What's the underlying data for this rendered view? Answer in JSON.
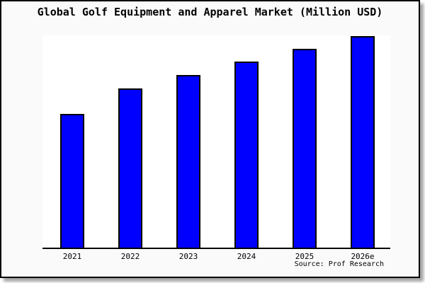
{
  "chart_data": {
    "type": "bar",
    "title": "Global Golf Equipment and Apparel Market (Million USD)",
    "categories": [
      "2021",
      "2022",
      "2023",
      "2024",
      "2025",
      "2026e"
    ],
    "values": [
      63.2,
      75.3,
      81.6,
      88.0,
      94.0,
      100.0
    ],
    "value_scale_note": "no y-axis ticks or value labels shown in image; values are relative bar heights with tallest bar (2026e) = 100",
    "xlabel": "",
    "ylabel": "",
    "ylim": [
      0,
      100
    ],
    "grid": false,
    "legend_position": "none",
    "bar_color": "#0000ff",
    "bar_border_color": "#000000",
    "source_label": "Source: Prof Research"
  },
  "colors": {
    "frame_background": "#fafafa",
    "plot_background": "#ffffff",
    "frame_border": "#000000",
    "text": "#000000"
  }
}
